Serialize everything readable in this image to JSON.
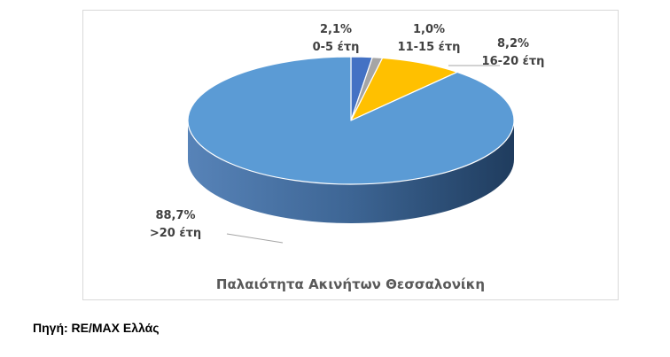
{
  "chart_data": {
    "type": "pie",
    "title": "Παλαιότητα Ακινήτων Θεσσαλονίκη",
    "slices": [
      {
        "category": "0-5 έτη",
        "value": 2.1,
        "value_label": "2,1%",
        "color": "#4472c4"
      },
      {
        "category": "11-15 έτη",
        "value": 1.0,
        "value_label": "1,0%",
        "color": "#a5a5a5"
      },
      {
        "category": "16-20 έτη",
        "value": 8.2,
        "value_label": "8,2%",
        "color": "#ffc000"
      },
      {
        "category": ">20 έτη",
        "value": 88.7,
        "value_label": "88,7%",
        "color": "#5b9bd5"
      }
    ],
    "legend": "none",
    "style": "3d-pie"
  },
  "source": "Πηγή: RE/MAX Ελλάς"
}
